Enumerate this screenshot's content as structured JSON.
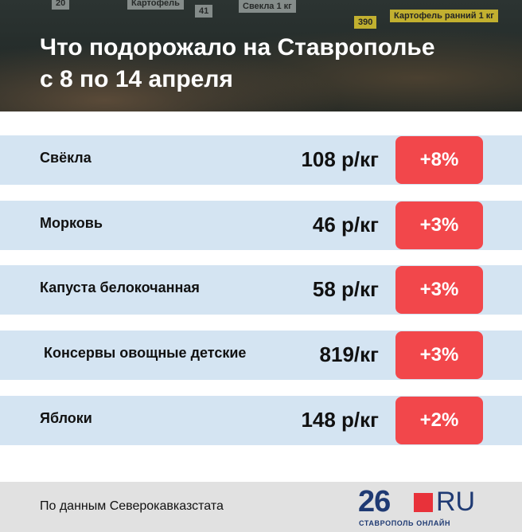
{
  "header": {
    "title_lines": [
      "Что подорожало на Ставрополье",
      "с 8 по 14 апреля"
    ],
    "background_tags": [
      "20",
      "Картофель",
      "41",
      "Свекла 1 кг",
      "390",
      "Картофель ранний 1 кг"
    ]
  },
  "table": {
    "rows": [
      [
        "Свёкла",
        "108 р/кг",
        "+8%"
      ],
      [
        "Морковь",
        "46 р/кг",
        "+3%"
      ],
      [
        "Капуста белокочанная",
        "58 р/кг",
        "+3%"
      ],
      [
        "Консервы овощные детские",
        "819/кг",
        "+3%"
      ],
      [
        "Яблоки",
        "148 р/кг",
        "+2%"
      ]
    ]
  },
  "footer": {
    "source": "По данным Северокавказстата",
    "logo_number": "26",
    "logo_domain": "RU",
    "logo_subtitle": "СТАВРОПОЛЬ ОНЛАЙН"
  }
}
